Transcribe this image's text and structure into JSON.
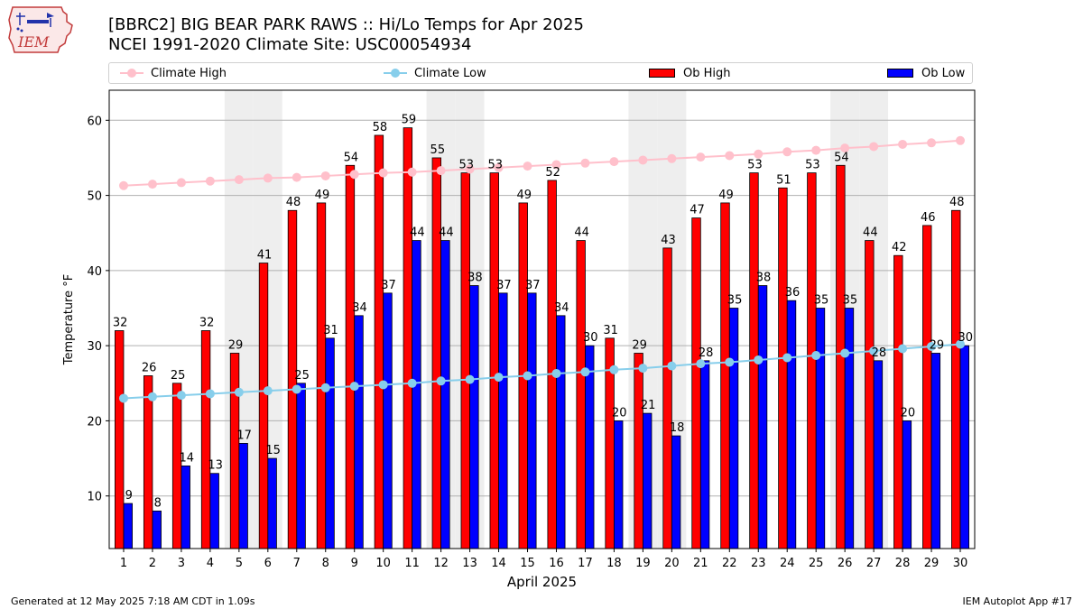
{
  "title_line1": "[BBRC2] BIG BEAR PARK RAWS :: Hi/Lo Temps for Apr 2025",
  "title_line2": "NCEI 1991-2020 Climate Site: USC00054934",
  "logo_text": "IEM",
  "footer_left": "Generated at 12 May 2025 7:18 AM CDT in 1.09s",
  "footer_right": "IEM Autoplot App #17",
  "colors": {
    "ob_high": "#ff0000",
    "ob_low": "#0000ff",
    "climate_high": "#ffc0cb",
    "climate_low": "#87ceeb",
    "weekend_band": "#eeeeee",
    "grid": "#b0b0b0"
  },
  "chart_data": {
    "type": "bar",
    "xlabel": "April 2025",
    "ylabel": "Temperature °F",
    "ylim": [
      3,
      64
    ],
    "yticks": [
      10,
      20,
      30,
      40,
      50,
      60
    ],
    "grid": "horizontal",
    "legend_placement": "top",
    "categories": [
      "1",
      "2",
      "3",
      "4",
      "5",
      "6",
      "7",
      "8",
      "9",
      "10",
      "11",
      "12",
      "13",
      "14",
      "15",
      "16",
      "17",
      "18",
      "19",
      "20",
      "21",
      "22",
      "23",
      "24",
      "25",
      "26",
      "27",
      "28",
      "29",
      "30"
    ],
    "shaded_days": [
      5,
      6,
      12,
      13,
      19,
      20,
      26,
      27
    ],
    "series": [
      {
        "name": "Ob High",
        "type": "bar",
        "color": "#ff0000",
        "values": [
          32,
          26,
          25,
          32,
          29,
          41,
          48,
          49,
          54,
          58,
          59,
          55,
          53,
          53,
          49,
          52,
          44,
          31,
          29,
          43,
          47,
          49,
          53,
          51,
          53,
          54,
          44,
          42,
          46,
          48
        ]
      },
      {
        "name": "Ob Low",
        "type": "bar",
        "color": "#0000ff",
        "values": [
          9,
          8,
          14,
          13,
          17,
          15,
          25,
          31,
          34,
          37,
          44,
          44,
          38,
          37,
          37,
          34,
          30,
          20,
          21,
          18,
          28,
          35,
          38,
          36,
          35,
          35,
          28,
          20,
          29,
          30
        ]
      },
      {
        "name": "Climate High",
        "type": "line",
        "color": "#ffc0cb",
        "values": [
          51.3,
          51.5,
          51.7,
          51.9,
          52.1,
          52.3,
          52.4,
          52.6,
          52.8,
          53.0,
          53.1,
          53.3,
          53.5,
          53.7,
          53.9,
          54.1,
          54.3,
          54.5,
          54.7,
          54.9,
          55.1,
          55.3,
          55.5,
          55.8,
          56.0,
          56.3,
          56.5,
          56.8,
          57.0,
          57.3
        ]
      },
      {
        "name": "Climate Low",
        "type": "line",
        "color": "#87ceeb",
        "values": [
          23.0,
          23.2,
          23.4,
          23.6,
          23.8,
          24.0,
          24.2,
          24.4,
          24.6,
          24.8,
          25.0,
          25.3,
          25.5,
          25.8,
          26.0,
          26.3,
          26.5,
          26.8,
          27.0,
          27.3,
          27.6,
          27.8,
          28.1,
          28.4,
          28.7,
          29.0,
          29.3,
          29.6,
          29.9,
          30.2
        ]
      }
    ]
  }
}
